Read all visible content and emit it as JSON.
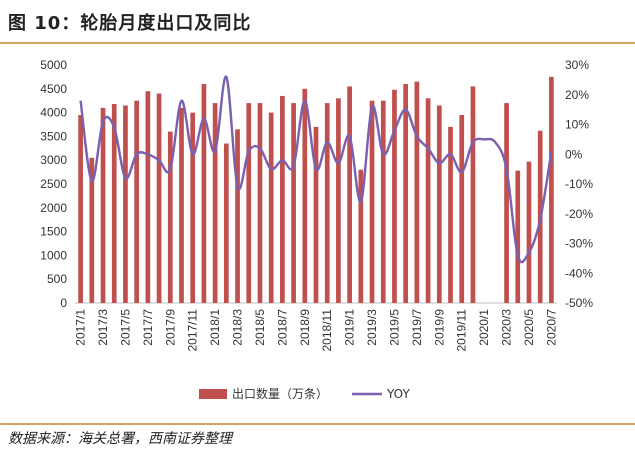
{
  "header": {
    "title": "图 10：轮胎月度出口及同比"
  },
  "source": "数据来源：海关总署，西南证券整理",
  "colors": {
    "bar": "#c0504d",
    "line": "#7a60b0",
    "accent_rule": "#d9a25a"
  },
  "chart_data": {
    "type": "bar",
    "title": "",
    "xlabel": "",
    "ylabel": "",
    "categories": [
      "2017/1",
      "2017/2",
      "2017/3",
      "2017/4",
      "2017/5",
      "2017/6",
      "2017/7",
      "2017/8",
      "2017/9",
      "2017/10",
      "2017/11",
      "2017/12",
      "2018/1",
      "2018/2",
      "2018/3",
      "2018/4",
      "2018/5",
      "2018/6",
      "2018/7",
      "2018/8",
      "2018/9",
      "2018/10",
      "2018/11",
      "2018/12",
      "2019/1",
      "2019/2",
      "2019/3",
      "2019/4",
      "2019/5",
      "2019/6",
      "2019/7",
      "2019/8",
      "2019/9",
      "2019/10",
      "2019/11",
      "2019/12",
      "2020/1",
      "2020/2",
      "2020/3",
      "2020/4",
      "2020/5",
      "2020/6",
      "2020/7"
    ],
    "x_tick_labels": [
      "2017/1",
      "2017/3",
      "2017/5",
      "2017/7",
      "2017/9",
      "2017/11",
      "2018/1",
      "2018/3",
      "2018/5",
      "2018/7",
      "2018/9",
      "2018/11",
      "2019/1",
      "2019/3",
      "2019/5",
      "2019/7",
      "2019/9",
      "2019/11",
      "2020/1",
      "2020/3",
      "2020/5",
      "2020/7"
    ],
    "series": [
      {
        "name": "出口数量（万条）",
        "type": "bar",
        "axis": "left",
        "values": [
          3950,
          3050,
          4100,
          4180,
          4150,
          4250,
          4450,
          4400,
          3600,
          4100,
          4000,
          4600,
          4200,
          3350,
          3650,
          4200,
          4200,
          4000,
          4350,
          4200,
          4500,
          3700,
          4200,
          4300,
          4550,
          2800,
          4250,
          4250,
          4480,
          4600,
          4650,
          4300,
          4150,
          3700,
          3950,
          4550,
          null,
          null,
          4200,
          2780,
          2970,
          3620,
          4750
        ]
      },
      {
        "name": "YOY",
        "type": "line",
        "axis": "right",
        "values": [
          18,
          -9,
          11,
          9,
          -8,
          0,
          0,
          -2,
          -5,
          18,
          0,
          12,
          1,
          26,
          -11,
          1,
          2,
          -5,
          -2,
          -4,
          18,
          -5,
          4,
          -3,
          6,
          -16,
          16,
          0,
          8,
          15,
          6,
          2,
          -3,
          0,
          -6,
          4,
          5,
          4,
          -5,
          -34,
          -33,
          -22,
          1
        ]
      }
    ],
    "y_left": {
      "min": 0,
      "max": 5000,
      "step": 500,
      "ticks": [
        "0",
        "500",
        "1000",
        "1500",
        "2000",
        "2500",
        "3000",
        "3500",
        "4000",
        "4500",
        "5000"
      ]
    },
    "y_right": {
      "min": -50,
      "max": 30,
      "step": 10,
      "ticks": [
        "-50%",
        "-40%",
        "-30%",
        "-20%",
        "-10%",
        "0%",
        "10%",
        "20%",
        "30%"
      ]
    },
    "legend": {
      "placement": "bottom",
      "entries": [
        "出口数量（万条）",
        "YOY"
      ]
    },
    "grid": false
  }
}
